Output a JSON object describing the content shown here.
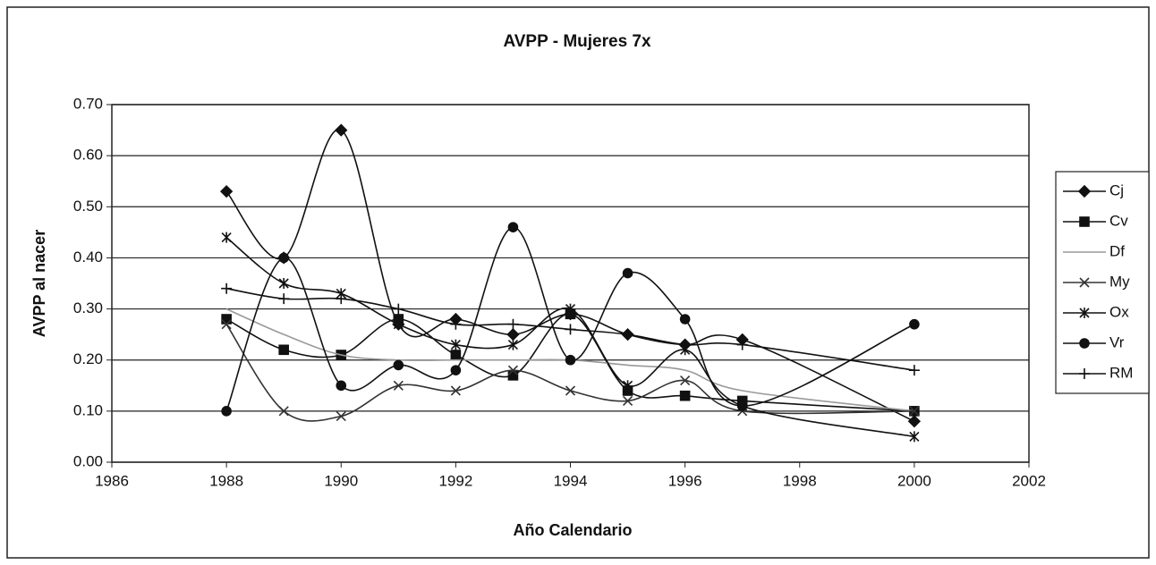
{
  "chart_data": {
    "type": "line",
    "title": "AVPP - Mujeres 7x",
    "xlabel": "Año Calendario",
    "ylabel": "AVPP al nacer",
    "x": [
      1988,
      1989,
      1990,
      1991,
      1992,
      1993,
      1994,
      1995,
      1996,
      1997,
      2000
    ],
    "series": [
      {
        "name": "Cj",
        "color": "#111111",
        "marker": "diamond",
        "values": [
          0.53,
          0.4,
          0.65,
          0.27,
          0.28,
          0.25,
          0.29,
          0.25,
          0.23,
          0.24,
          0.08
        ]
      },
      {
        "name": "Cv",
        "color": "#111111",
        "marker": "square",
        "values": [
          0.28,
          0.22,
          0.21,
          0.28,
          0.21,
          0.17,
          0.29,
          0.14,
          0.13,
          0.12,
          0.1
        ]
      },
      {
        "name": "Df",
        "color": "#999999",
        "marker": "none",
        "values": [
          0.3,
          0.25,
          0.21,
          0.2,
          0.2,
          0.2,
          0.2,
          0.19,
          0.18,
          0.14,
          0.1
        ]
      },
      {
        "name": "My",
        "color": "#333333",
        "marker": "x",
        "values": [
          0.27,
          0.1,
          0.09,
          0.15,
          0.14,
          0.18,
          0.14,
          0.12,
          0.16,
          0.1,
          0.1
        ]
      },
      {
        "name": "Ox",
        "color": "#111111",
        "marker": "star",
        "values": [
          0.44,
          0.35,
          0.33,
          0.27,
          0.23,
          0.23,
          0.3,
          0.15,
          0.22,
          0.11,
          0.05
        ]
      },
      {
        "name": "Vr",
        "color": "#111111",
        "marker": "circle",
        "values": [
          0.1,
          0.4,
          0.15,
          0.19,
          0.18,
          0.46,
          0.2,
          0.37,
          0.28,
          0.11,
          0.27
        ]
      },
      {
        "name": "RM",
        "color": "#111111",
        "marker": "plus",
        "values": [
          0.34,
          0.32,
          0.32,
          0.3,
          0.27,
          0.27,
          0.26,
          0.25,
          0.23,
          0.23,
          0.18
        ]
      }
    ],
    "xlim": [
      1986,
      2002
    ],
    "xticks": [
      1986,
      1988,
      1990,
      1992,
      1994,
      1996,
      1998,
      2000,
      2002
    ],
    "ylim": [
      0,
      0.7
    ],
    "yticks": [
      {
        "value": 0,
        "label": "0.00"
      },
      {
        "value": 0.1,
        "label": "0.10"
      },
      {
        "value": 0.2,
        "label": "0.20"
      },
      {
        "value": 0.3,
        "label": "0.30"
      },
      {
        "value": 0.4,
        "label": "0.40"
      },
      {
        "value": 0.5,
        "label": "0.50"
      },
      {
        "value": 0.6,
        "label": "0.60"
      },
      {
        "value": 0.7,
        "label": "0.70"
      }
    ],
    "grid": true,
    "legend": "right",
    "smooth": true
  }
}
